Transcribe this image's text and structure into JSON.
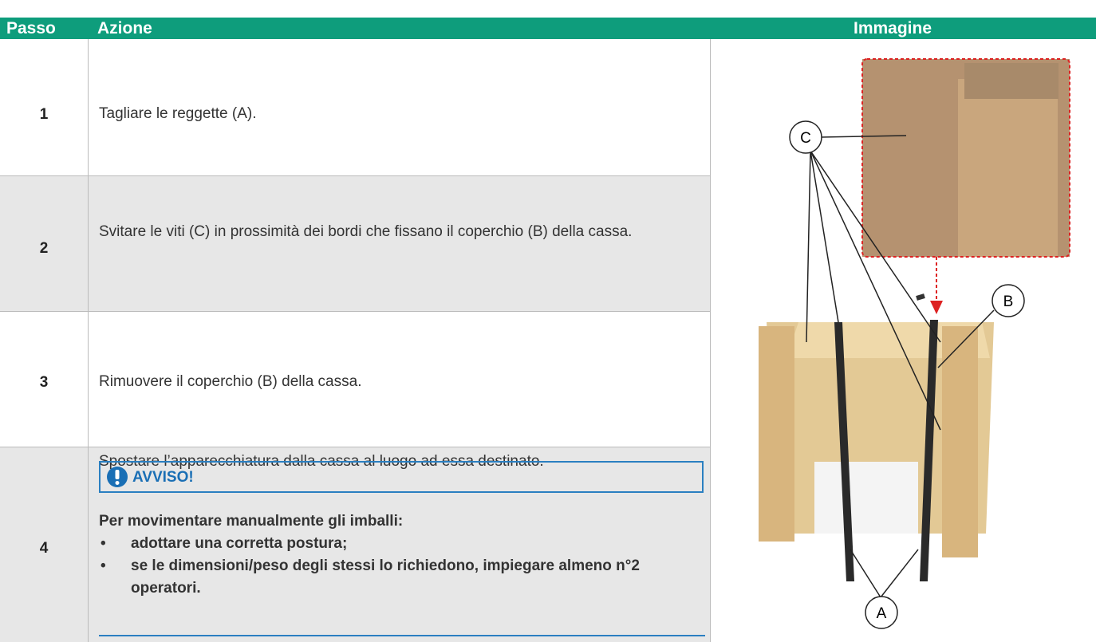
{
  "header": {
    "step": "Passo",
    "action": "Azione",
    "image": "Immagine"
  },
  "rows": [
    {
      "step": "1",
      "action": "Tagliare le reggette (A)."
    },
    {
      "step": "2",
      "action": "Svitare le viti (C) in prossimità dei bordi che fissano il coperchio (B) della cassa."
    },
    {
      "step": "3",
      "action": "Rimuovere il coperchio (B) della cassa."
    },
    {
      "step": "4",
      "action": "Spostare l’apparecchiatura dalla cassa al luogo ad essa destinato.",
      "warning": {
        "title": "AVVISO!",
        "intro": "Per movimentare manualmente gli imballi:",
        "items": [
          "adottare una corretta postura;",
          "se le dimensioni/peso degli stessi lo richiedono, impiegare almeno n°2 operatori."
        ]
      }
    }
  ],
  "image_labels": {
    "c": "C",
    "b": "B",
    "a": "A"
  }
}
